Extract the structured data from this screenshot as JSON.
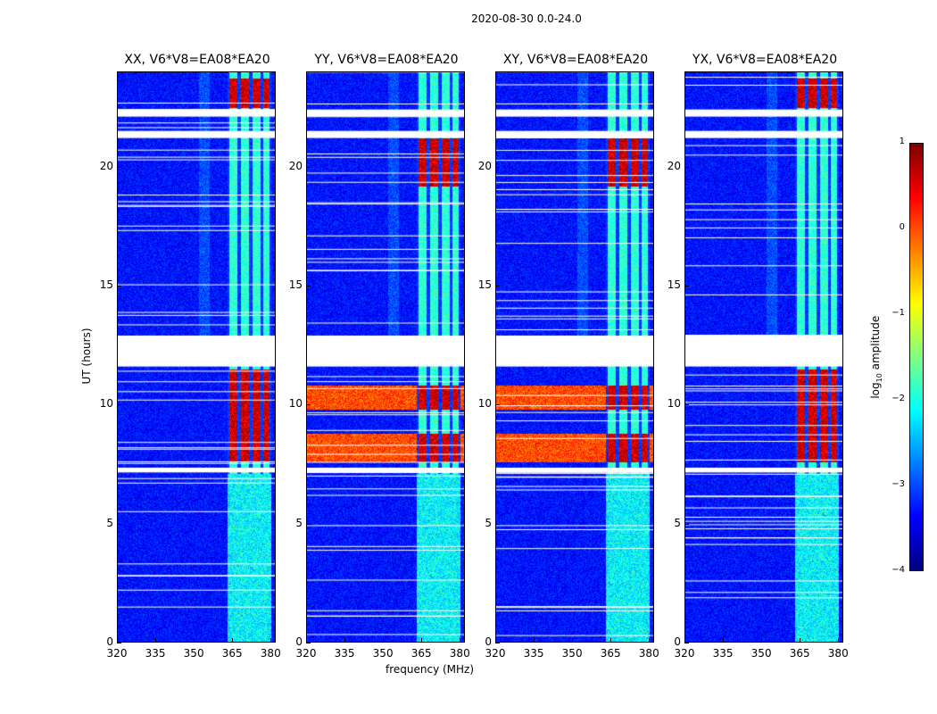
{
  "figure_title": "2020-08-30 0.0-24.0",
  "ylabel": "UT (hours)",
  "xlabel": "frequency (MHz)",
  "colorbar": {
    "label_prefix": "log",
    "label_sub": "10",
    "label_suffix": " amplitude",
    "ticks": [
      "1",
      "0",
      "−1",
      "−2",
      "−3",
      "−4"
    ],
    "tick_values": [
      1,
      0,
      -1,
      -2,
      -3,
      -4
    ],
    "range": [
      -4,
      1
    ]
  },
  "chart_data": {
    "type": "heatmap",
    "title": "2020-08-30 0.0-24.0",
    "xlabel": "frequency (MHz)",
    "ylabel": "UT (hours)",
    "xlim": [
      320,
      382
    ],
    "ylim": [
      0,
      24
    ],
    "xticks": [
      "320",
      "335",
      "350",
      "365",
      "380"
    ],
    "xtick_values": [
      320,
      335,
      350,
      365,
      380
    ],
    "yticks": [
      "0",
      "5",
      "10",
      "15",
      "20"
    ],
    "ytick_values": [
      0,
      5,
      10,
      15,
      20
    ],
    "colorscale": "jet",
    "zlabel": "log10 amplitude",
    "zlim": [
      -4,
      1
    ],
    "data_gaps_hours": [
      [
        11.6,
        12.9
      ],
      [
        7.15,
        7.35
      ],
      [
        22.1,
        22.4
      ],
      [
        21.2,
        21.5
      ]
    ],
    "strong_band_mhz": [
      363,
      380
    ],
    "panels": [
      {
        "title": "XX, V6*V8=EA08*EA20",
        "peak_hours": [
          [
            7.6,
            11.5
          ],
          [
            22.5,
            23.7
          ]
        ]
      },
      {
        "title": "YY, V6*V8=EA08*EA20",
        "peak_hours": [
          [
            7.6,
            8.8
          ],
          [
            9.8,
            10.8
          ],
          [
            19.2,
            21.2
          ]
        ]
      },
      {
        "title": "XY, V6*V8=EA08*EA20",
        "peak_hours": [
          [
            7.6,
            8.8
          ],
          [
            9.8,
            10.8
          ],
          [
            19.2,
            21.2
          ]
        ]
      },
      {
        "title": "YX, V6*V8=EA08*EA20",
        "peak_hours": [
          [
            7.6,
            11.5
          ],
          [
            22.5,
            23.7
          ]
        ]
      }
    ]
  },
  "colors": {
    "plot_background": "#ffffff",
    "frame": "#000000"
  }
}
